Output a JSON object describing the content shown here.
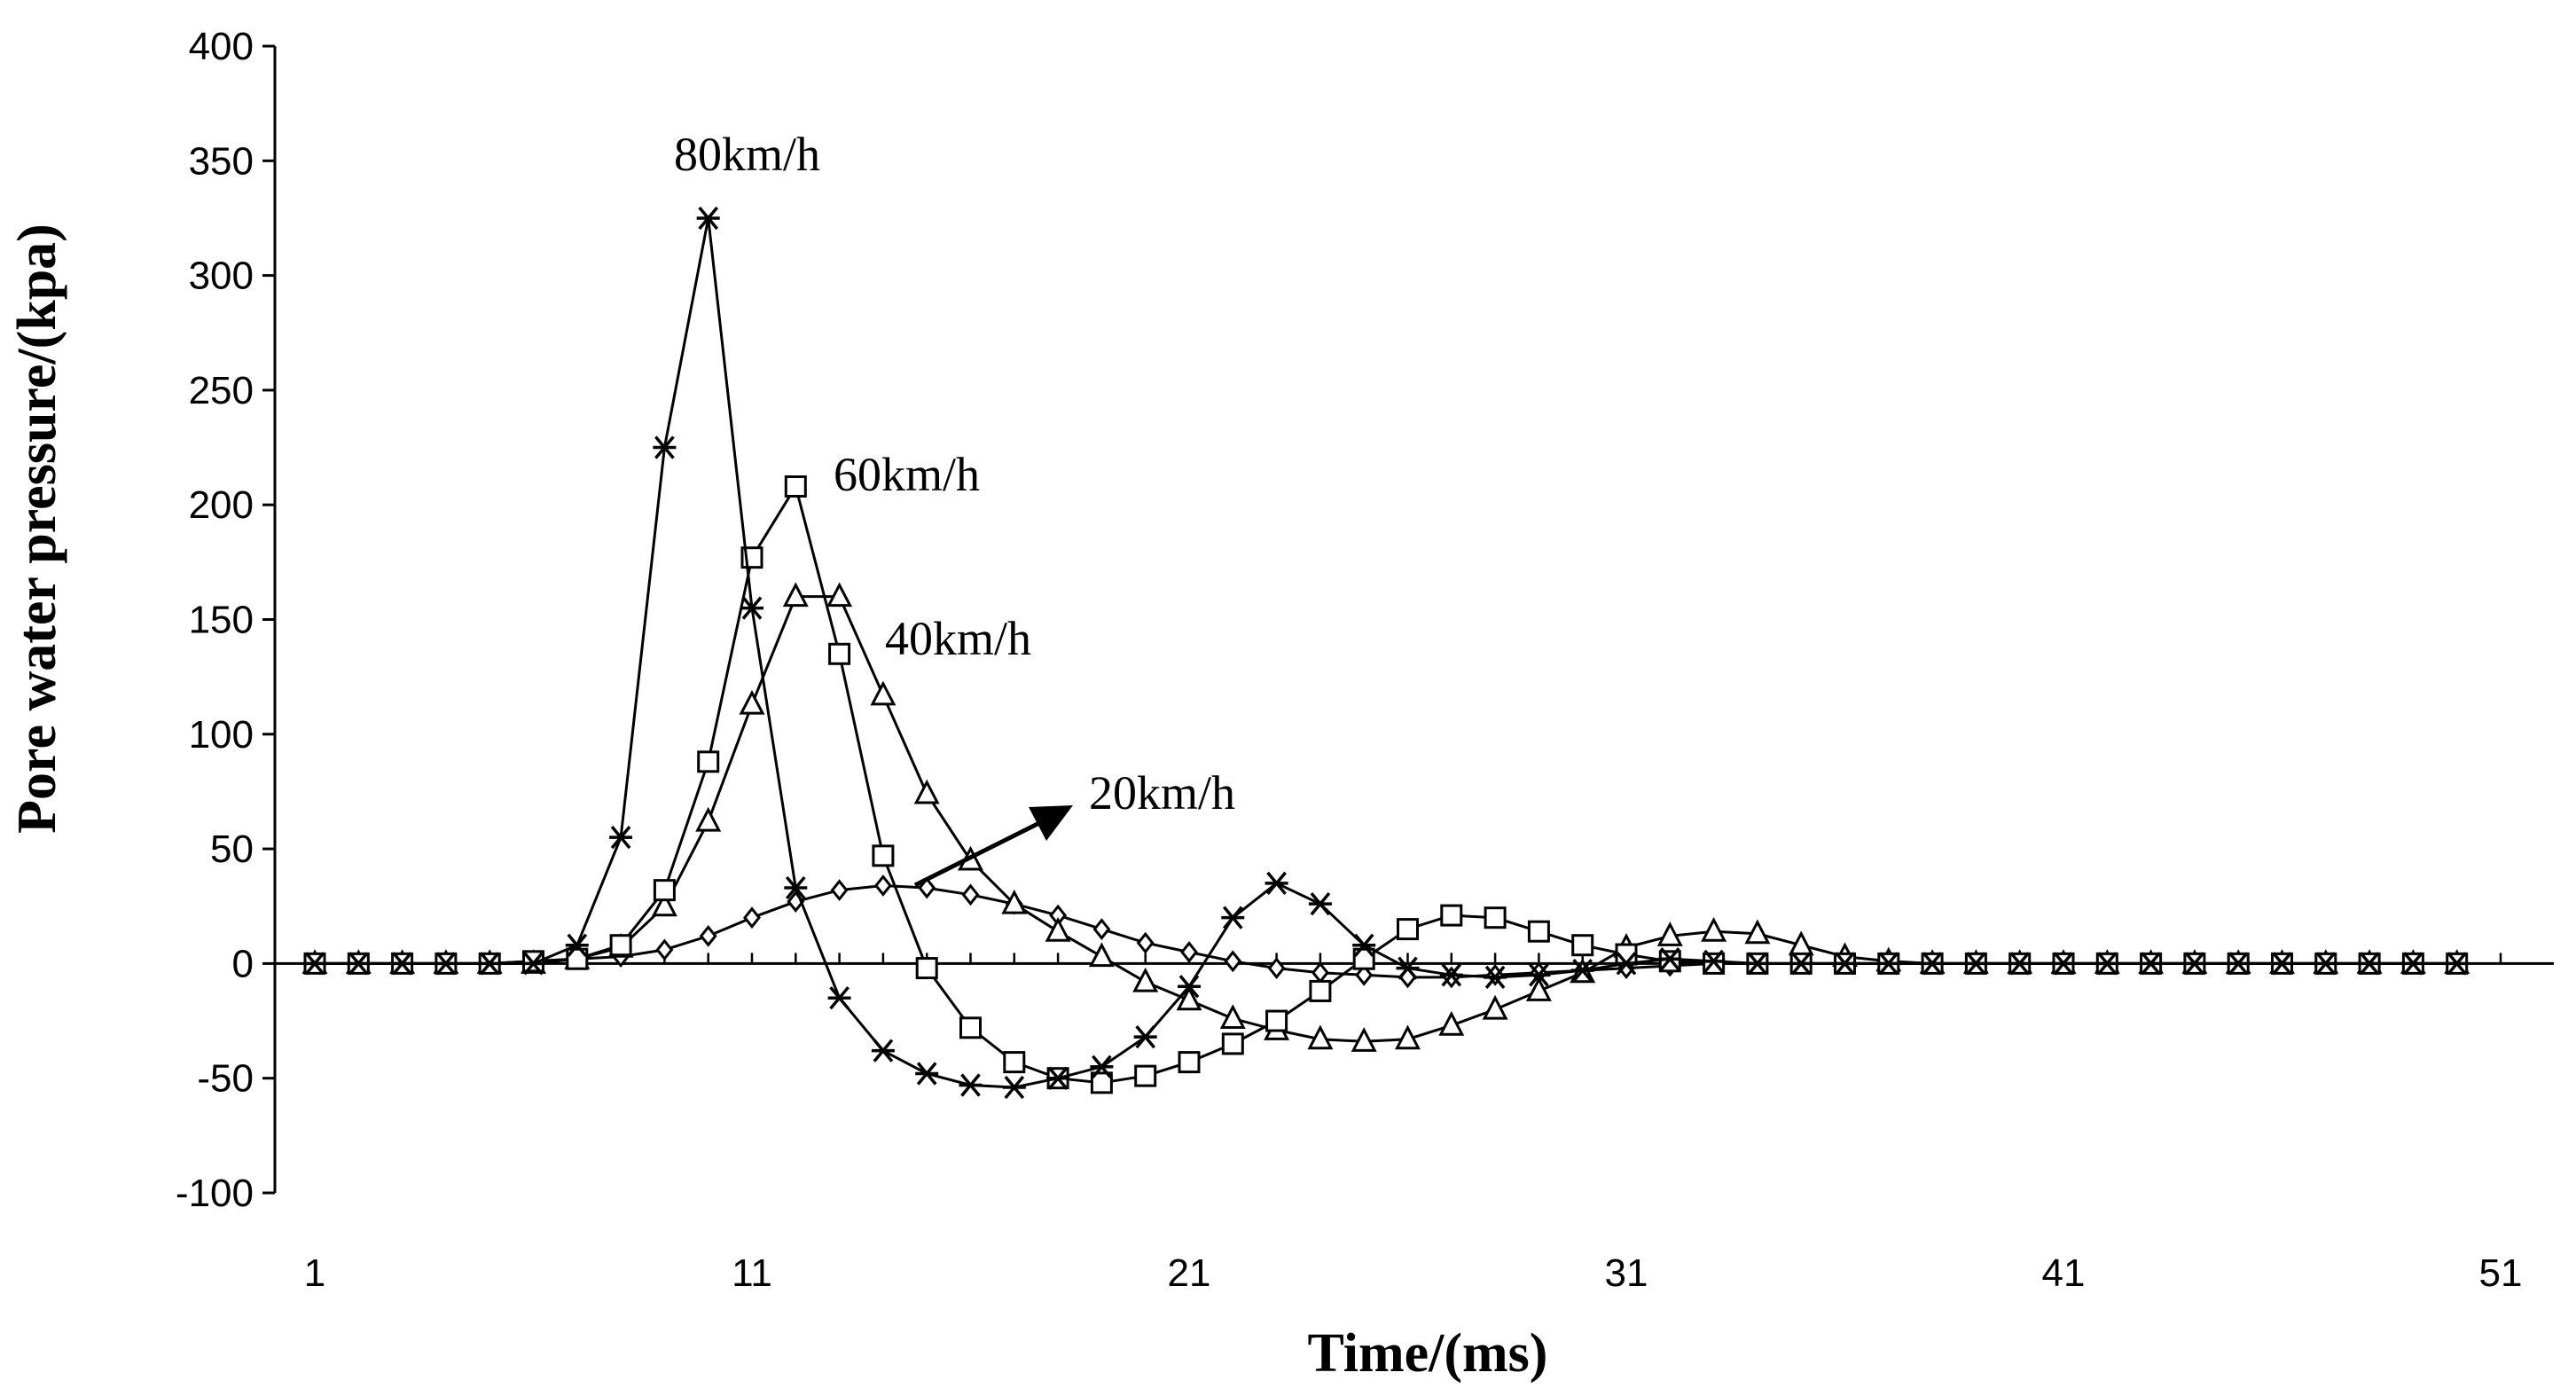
{
  "chart_data": {
    "type": "line",
    "title": "",
    "xlabel": "Time/(ms)",
    "ylabel": "Pore water pressure/(kpa)",
    "xlim": [
      1,
      51
    ],
    "ylim": [
      -100,
      400
    ],
    "xticks": [
      1,
      11,
      21,
      31,
      41,
      51
    ],
    "yticks": [
      -100,
      -50,
      0,
      50,
      100,
      150,
      200,
      250,
      300,
      350,
      400
    ],
    "x": [
      1,
      2,
      3,
      4,
      5,
      6,
      7,
      8,
      9,
      10,
      11,
      12,
      13,
      14,
      15,
      16,
      17,
      18,
      19,
      20,
      21,
      22,
      23,
      24,
      25,
      26,
      27,
      28,
      29,
      30,
      31,
      32,
      33,
      34,
      35,
      36,
      37,
      38,
      39,
      40,
      41,
      42,
      43,
      44,
      45,
      46,
      47,
      48,
      49,
      50
    ],
    "series": [
      {
        "name": "80km/h",
        "marker": "asterisk",
        "values": [
          0,
          0,
          0,
          0,
          0,
          0,
          8,
          55,
          225,
          325,
          155,
          33,
          -15,
          -38,
          -48,
          -53,
          -54,
          -50,
          -45,
          -32,
          -10,
          20,
          35,
          26,
          8,
          -2,
          -5,
          -6,
          -5,
          -3,
          0,
          2,
          1,
          0,
          0,
          0,
          0,
          0,
          0,
          0,
          0,
          0,
          0,
          0,
          0,
          0,
          0,
          0,
          0,
          0
        ]
      },
      {
        "name": "60km/h",
        "marker": "square",
        "values": [
          0,
          0,
          0,
          0,
          0,
          1,
          2,
          8,
          32,
          88,
          177,
          208,
          135,
          47,
          -2,
          -28,
          -43,
          -50,
          -52,
          -49,
          -43,
          -35,
          -25,
          -12,
          2,
          15,
          21,
          20,
          14,
          8,
          4,
          1,
          0,
          0,
          0,
          0,
          0,
          0,
          0,
          0,
          0,
          0,
          0,
          0,
          0,
          0,
          0,
          0,
          0,
          0
        ]
      },
      {
        "name": "40km/h",
        "marker": "triangle",
        "values": [
          0,
          0,
          0,
          0,
          0,
          0,
          2,
          7,
          25,
          62,
          113,
          160,
          160,
          117,
          74,
          45,
          26,
          14,
          3,
          -8,
          -16,
          -24,
          -29,
          -33,
          -34,
          -33,
          -27,
          -20,
          -12,
          -4,
          7,
          12,
          14,
          13,
          8,
          3,
          1,
          0,
          0,
          0,
          0,
          0,
          0,
          0,
          0,
          0,
          0,
          0,
          0,
          0
        ]
      },
      {
        "name": "20km/h",
        "marker": "diamond",
        "values": [
          0,
          0,
          0,
          0,
          0,
          1,
          2,
          3,
          6,
          12,
          20,
          27,
          32,
          34,
          33,
          30,
          26,
          21,
          15,
          9,
          5,
          1,
          -2,
          -4,
          -5,
          -6,
          -6,
          -5,
          -4,
          -3,
          -2,
          -1,
          0,
          0,
          0,
          0,
          0,
          0,
          0,
          0,
          0,
          0,
          0,
          0,
          0,
          0,
          0,
          0,
          0,
          0
        ]
      }
    ],
    "annotations": [
      {
        "text": "80km/h",
        "series": "80km/h"
      },
      {
        "text": "60km/h",
        "series": "60km/h"
      },
      {
        "text": "40km/h",
        "series": "40km/h"
      },
      {
        "text": "20km/h",
        "series": "20km/h",
        "arrow": true
      }
    ]
  }
}
